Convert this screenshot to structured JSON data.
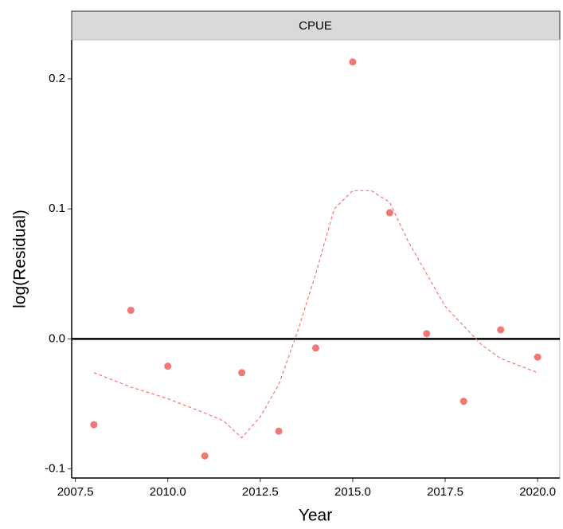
{
  "chart_data": {
    "type": "scatter",
    "strip": "CPUE",
    "x_label": "Year",
    "y_label": "log(Residual)",
    "x": [
      2008,
      2009,
      2010,
      2011,
      2012,
      2013,
      2014,
      2015,
      2016,
      2017,
      2018,
      2019,
      2020
    ],
    "values": [
      -0.066,
      0.022,
      -0.021,
      -0.09,
      -0.026,
      -0.071,
      -0.007,
      0.213,
      0.097,
      0.004,
      -0.048,
      0.007,
      -0.014
    ],
    "color": "#f07874",
    "smooth": {
      "x": [
        2008,
        2009,
        2010,
        2011,
        2011.5,
        2012,
        2012.5,
        2013,
        2013.5,
        2014,
        2014.5,
        2015,
        2015.5,
        2016,
        2016.5,
        2017,
        2017.5,
        2018,
        2018.5,
        2019,
        2020
      ],
      "values": [
        -0.026,
        -0.037,
        -0.046,
        -0.057,
        -0.063,
        -0.076,
        -0.06,
        -0.035,
        0.005,
        0.05,
        0.1,
        0.114,
        0.114,
        0.105,
        0.075,
        0.05,
        0.025,
        0.01,
        -0.005,
        -0.015,
        -0.026
      ]
    },
    "hline": 0,
    "xlim": [
      2007.4,
      2020.6
    ],
    "ylim": [
      -0.107,
      0.23
    ],
    "xticks": [
      {
        "value": 2007.5,
        "label": "2007.5"
      },
      {
        "value": 2010,
        "label": "2010.0"
      },
      {
        "value": 2012.5,
        "label": "2012.5"
      },
      {
        "value": 2015,
        "label": "2015.0"
      },
      {
        "value": 2017.5,
        "label": "2017.5"
      },
      {
        "value": 2020,
        "label": "2020.0"
      }
    ],
    "yticks": [
      -0.1,
      {
        "value": 0,
        "label": "0.0"
      },
      0.1,
      0.2
    ]
  }
}
